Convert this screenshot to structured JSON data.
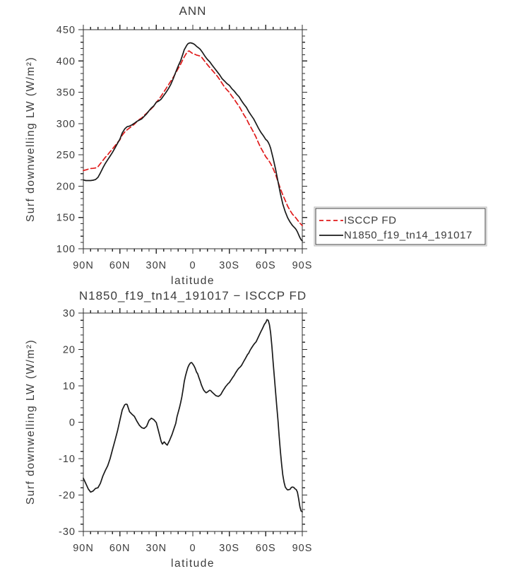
{
  "colors": {
    "background": "#ffffff",
    "axis": "#2f2f2f",
    "text": "#3c3c3c",
    "isccp_red": "#e01a1a",
    "model_black": "#1a1a1a"
  },
  "legend": {
    "entries": [
      {
        "label": "ISCCP FD",
        "line": "red-dashed"
      },
      {
        "label": "N1850_f19_tn14_191017",
        "line": "black-solid"
      }
    ]
  },
  "chart_data": [
    {
      "type": "line",
      "title": "ANN",
      "xlabel": "latitude",
      "ylabel": "Surf downwelling LW (W/m²)",
      "x_tick_labels": [
        "90N",
        "60N",
        "30N",
        "0",
        "30S",
        "60S",
        "90S"
      ],
      "x_tick_lats": [
        90,
        60,
        30,
        0,
        -30,
        -60,
        -90
      ],
      "x_minor_step_deg": 6,
      "ylim": [
        100,
        450
      ],
      "y_major_ticks": [
        450,
        400,
        350,
        300,
        250,
        200,
        150,
        100
      ],
      "y_tick_labels": [
        "450",
        "400",
        "350",
        "300",
        "250",
        "200",
        "150",
        "100"
      ],
      "y_minor_step": 10,
      "grid": false,
      "legend_position": "outside-right",
      "series": [
        {
          "id": "isccp-curve",
          "name": "ISCCP FD",
          "color": "#e01a1a",
          "style": "dashed",
          "lat": [
            90,
            87,
            85,
            82,
            80,
            78,
            76,
            74,
            72,
            70,
            68,
            66,
            64,
            62,
            60,
            58,
            56,
            54,
            52,
            50,
            48,
            46,
            44,
            42,
            40,
            38,
            36,
            34,
            32,
            30,
            28,
            26,
            24,
            22,
            20,
            18,
            16,
            14,
            12,
            10,
            8,
            7,
            6,
            5,
            4,
            3,
            2,
            1,
            0,
            -1,
            -2,
            -3,
            -4,
            -5,
            -6,
            -7,
            -8,
            -10,
            -12,
            -14,
            -16,
            -18,
            -20,
            -22,
            -24,
            -26,
            -28,
            -30,
            -32,
            -34,
            -36,
            -38,
            -40,
            -42,
            -44,
            -46,
            -48,
            -50,
            -52,
            -54,
            -56,
            -58,
            -60,
            -62,
            -64,
            -66,
            -68,
            -70,
            -72,
            -74,
            -76,
            -78,
            -80,
            -82,
            -84,
            -86,
            -88,
            -90
          ],
          "values": [
            225,
            226.5,
            228,
            228.5,
            229,
            231,
            236,
            241,
            246,
            250,
            255,
            259.5,
            264.5,
            269.5,
            274,
            281.5,
            286.5,
            290,
            293,
            296,
            299,
            303,
            306.5,
            309,
            313,
            316.5,
            320,
            324,
            328,
            334,
            338.5,
            344,
            350,
            356,
            362,
            368,
            374,
            381,
            388,
            395,
            403,
            406.5,
            410,
            413,
            415.5,
            416,
            414.5,
            413,
            412,
            411,
            410.5,
            409.5,
            409,
            408.5,
            408,
            406.5,
            404,
            399,
            394,
            389.5,
            385,
            380.5,
            376,
            370.5,
            364.5,
            358.5,
            354,
            350,
            344,
            339,
            333,
            328,
            321,
            314,
            308,
            300,
            293,
            286,
            278,
            269,
            261,
            254,
            247,
            242,
            236,
            228,
            219,
            207,
            196,
            186,
            177,
            168,
            161,
            155,
            151,
            146,
            141,
            137
          ]
        },
        {
          "id": "model-curve",
          "name": "N1850_f19_tn14_191017",
          "color": "#1a1a1a",
          "style": "solid",
          "lat": [
            90,
            88,
            86,
            84,
            82,
            80,
            78,
            76,
            74,
            72,
            70,
            68,
            66,
            64,
            62,
            60,
            58,
            56,
            54,
            52,
            50,
            48,
            46,
            44,
            42,
            40,
            38,
            36,
            34,
            32,
            30,
            28,
            26,
            24,
            22,
            20,
            18,
            16,
            14,
            12,
            10,
            8,
            7,
            6,
            5,
            4,
            3,
            2,
            1,
            0,
            -1,
            -2,
            -3,
            -4,
            -5,
            -6,
            -8,
            -10,
            -12,
            -14,
            -16,
            -18,
            -20,
            -22,
            -24,
            -26,
            -28,
            -30,
            -32,
            -34,
            -36,
            -38,
            -40,
            -42,
            -44,
            -46,
            -48,
            -50,
            -52,
            -54,
            -56,
            -58,
            -60,
            -61,
            -62,
            -63,
            -64,
            -66,
            -68,
            -70,
            -72,
            -74,
            -76,
            -78,
            -80,
            -82,
            -84,
            -85,
            -86,
            -87,
            -88,
            -89,
            -90
          ],
          "values": [
            210,
            209,
            209,
            209,
            209.5,
            210.5,
            214,
            221,
            229,
            236,
            242,
            248,
            254,
            261,
            268,
            275,
            285,
            291.5,
            295,
            296,
            298,
            300.5,
            303.5,
            305.5,
            307.5,
            311.5,
            315.5,
            320.5,
            325,
            328.5,
            334,
            336,
            339,
            344.5,
            350,
            356,
            363,
            372,
            382.5,
            392,
            400.5,
            412,
            418,
            421.5,
            425,
            427.5,
            428.5,
            429,
            428.5,
            428,
            427,
            425.5,
            423.5,
            422,
            420.5,
            419,
            413.5,
            407.5,
            402.5,
            398.5,
            393,
            388,
            383,
            378,
            372,
            368,
            364,
            361,
            356,
            352,
            347,
            343,
            336.5,
            331,
            326,
            319,
            313,
            307.5,
            300,
            292.5,
            286,
            280.5,
            274.5,
            273,
            270,
            266,
            260.5,
            244.5,
            227.5,
            207.5,
            188,
            171.5,
            159,
            149.5,
            142.5,
            137,
            133,
            130.5,
            127,
            122.5,
            118,
            114.5,
            112.5
          ]
        }
      ]
    },
    {
      "type": "line",
      "title": "N1850_f19_tn14_191017 − ISCCP FD",
      "xlabel": "latitude",
      "ylabel": "Surf downwelling LW (W/m²)",
      "x_tick_labels": [
        "90N",
        "60N",
        "30N",
        "0",
        "30S",
        "60S",
        "90S"
      ],
      "x_tick_lats": [
        90,
        60,
        30,
        0,
        -30,
        -60,
        -90
      ],
      "x_minor_step_deg": 6,
      "ylim": [
        -30,
        30
      ],
      "y_major_ticks": [
        30,
        20,
        10,
        0,
        -10,
        -20,
        -30
      ],
      "y_tick_labels": [
        "30",
        "20",
        "10",
        "0",
        "-10",
        "-20",
        "-30"
      ],
      "y_minor_step": 2,
      "grid": false,
      "legend_position": "none",
      "series": [
        {
          "id": "difference-curve",
          "name": "N1850_f19_tn14_191017 − ISCCP FD",
          "color": "#1a1a1a",
          "style": "solid",
          "lat": [
            90,
            88,
            86,
            84,
            82,
            80,
            78,
            76,
            74,
            72,
            70,
            68,
            66,
            64,
            62,
            60,
            58,
            56,
            55,
            54,
            52,
            50,
            48,
            46,
            44,
            42,
            40,
            38,
            36,
            34,
            32,
            30,
            28,
            26,
            25,
            23.5,
            22,
            21,
            19,
            17,
            16,
            14,
            13,
            11,
            10,
            9,
            8,
            7,
            6,
            5,
            4,
            3,
            2,
            1,
            0,
            -1,
            -2,
            -3,
            -4,
            -5,
            -6,
            -7,
            -8,
            -9,
            -10,
            -11,
            -12,
            -13,
            -14,
            -15,
            -16,
            -17,
            -18,
            -19,
            -20,
            -21,
            -22,
            -23,
            -24,
            -25,
            -26,
            -27,
            -28,
            -29,
            -30,
            -31,
            -32,
            -33,
            -34,
            -35,
            -36,
            -37,
            -38,
            -39,
            -40,
            -41,
            -42,
            -43,
            -44,
            -45,
            -46,
            -47,
            -48,
            -49,
            -50,
            -51,
            -52,
            -53,
            -54,
            -55,
            -56,
            -57,
            -58,
            -59,
            -60,
            -61,
            -62,
            -63,
            -64,
            -65,
            -66,
            -67,
            -68,
            -69,
            -70,
            -71,
            -72,
            -73,
            -74,
            -75,
            -76,
            -77,
            -78,
            -79,
            -80,
            -81,
            -82,
            -83,
            -84,
            -85,
            -86,
            -87,
            -88,
            -89,
            -90
          ],
          "values": [
            -15.4,
            -16.8,
            -18.3,
            -19.2,
            -18.9,
            -18.2,
            -18.0,
            -16.8,
            -14.8,
            -13.3,
            -12.0,
            -10.0,
            -7.5,
            -5.0,
            -2.5,
            0.5,
            3.4,
            4.8,
            5.0,
            4.9,
            2.9,
            2.2,
            1.6,
            0.3,
            -0.8,
            -1.5,
            -1.7,
            -1.1,
            0.5,
            1.1,
            0.7,
            -0.1,
            -2.7,
            -5.3,
            -6.0,
            -5.4,
            -6.0,
            -6.3,
            -4.9,
            -3.3,
            -2.3,
            -0.3,
            1.5,
            4.0,
            5.4,
            7.0,
            9.0,
            11.2,
            12.8,
            14.0,
            15.1,
            15.8,
            16.3,
            16.4,
            16.0,
            15.5,
            14.8,
            13.8,
            13.3,
            12.3,
            11.4,
            10.3,
            9.5,
            8.8,
            8.4,
            8.1,
            8.3,
            8.6,
            8.8,
            8.6,
            8.2,
            7.9,
            7.6,
            7.3,
            7.2,
            7.1,
            7.3,
            7.6,
            8.2,
            8.8,
            9.3,
            9.8,
            10.2,
            10.6,
            10.9,
            11.4,
            11.9,
            12.4,
            12.9,
            13.5,
            14.0,
            14.5,
            14.9,
            15.2,
            15.6,
            16.2,
            16.8,
            17.4,
            18.0,
            18.6,
            19.0,
            19.7,
            20.3,
            20.8,
            21.3,
            21.7,
            22.1,
            22.8,
            23.5,
            24.2,
            24.9,
            25.6,
            26.3,
            27.0,
            27.4,
            28.2,
            28.0,
            26.8,
            24.5,
            21.0,
            16.5,
            12.5,
            8.5,
            4.5,
            0.5,
            -4.0,
            -8.0,
            -11.5,
            -14.5,
            -16.5,
            -17.8,
            -18.3,
            -18.6,
            -18.5,
            -18.4,
            -17.9,
            -17.8,
            -17.9,
            -18.3,
            -18.5,
            -19.2,
            -21.0,
            -23.2,
            -24.4,
            -24.6
          ]
        }
      ]
    }
  ]
}
